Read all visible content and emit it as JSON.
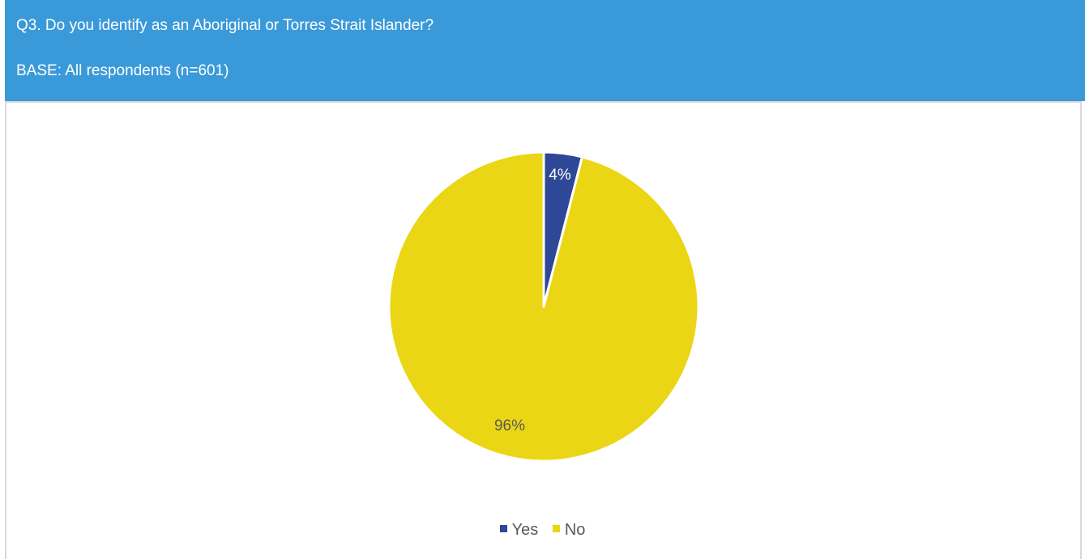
{
  "header": {
    "question": "Q3. Do you identify as an Aboriginal or Torres Strait Islander?",
    "base": "BASE: All respondents (n=601)"
  },
  "chart_data": {
    "type": "pie",
    "title": "",
    "categories": [
      "Yes",
      "No"
    ],
    "values": [
      4,
      96
    ],
    "labels": [
      "4%",
      "96%"
    ],
    "colors": [
      "#2e4897",
      "#ead614"
    ],
    "label_color": "#595959",
    "legend": "bottom",
    "legend_entries": [
      "Yes",
      "No"
    ]
  },
  "colors": {
    "header_bg": "#3a9ad9",
    "header_text": "#ffffff"
  }
}
